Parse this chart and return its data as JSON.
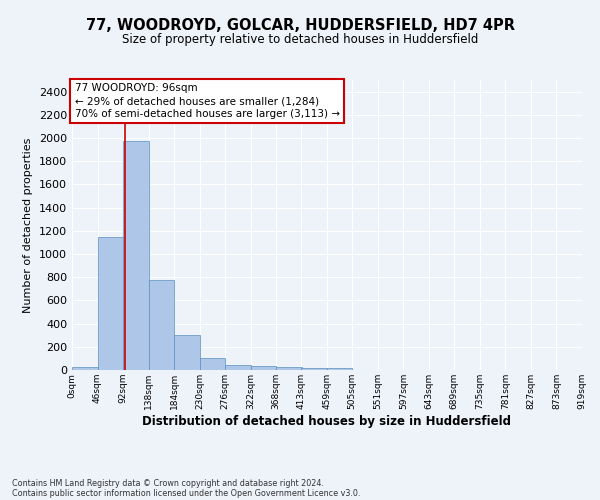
{
  "title1": "77, WOODROYD, GOLCAR, HUDDERSFIELD, HD7 4PR",
  "title2": "Size of property relative to detached houses in Huddersfield",
  "xlabel": "Distribution of detached houses by size in Huddersfield",
  "ylabel": "Number of detached properties",
  "footnote1": "Contains HM Land Registry data © Crown copyright and database right 2024.",
  "footnote2": "Contains public sector information licensed under the Open Government Licence v3.0.",
  "annotation_line1": "77 WOODROYD: 96sqm",
  "annotation_line2": "← 29% of detached houses are smaller (1,284)",
  "annotation_line3": "70% of semi-detached houses are larger (3,113) →",
  "property_size_sqm": 96,
  "bin_edges": [
    0,
    46,
    92,
    138,
    184,
    230,
    276,
    322,
    368,
    413,
    459,
    505,
    551,
    597,
    643,
    689,
    735,
    781,
    827,
    873,
    919
  ],
  "bar_heights": [
    30,
    1145,
    1970,
    780,
    300,
    105,
    40,
    35,
    25,
    20,
    15,
    0,
    0,
    0,
    0,
    0,
    0,
    0,
    0,
    0
  ],
  "bar_color": "#aec6e8",
  "bar_edge_color": "#5a8fc0",
  "marker_color": "#cc0000",
  "ylim": [
    0,
    2500
  ],
  "yticks": [
    0,
    200,
    400,
    600,
    800,
    1000,
    1200,
    1400,
    1600,
    1800,
    2000,
    2200,
    2400
  ],
  "bg_color": "#eef2f9",
  "grid_color": "#ffffff",
  "annotation_box_color": "#ffffff",
  "annotation_box_edge": "#cc0000",
  "title1_fontsize": 10.5,
  "title2_fontsize": 8.5,
  "xlabel_fontsize": 8.5,
  "ylabel_fontsize": 8,
  "xtick_fontsize": 6.5,
  "ytick_fontsize": 8,
  "annotation_fontsize": 7.5,
  "footnote_fontsize": 5.8
}
